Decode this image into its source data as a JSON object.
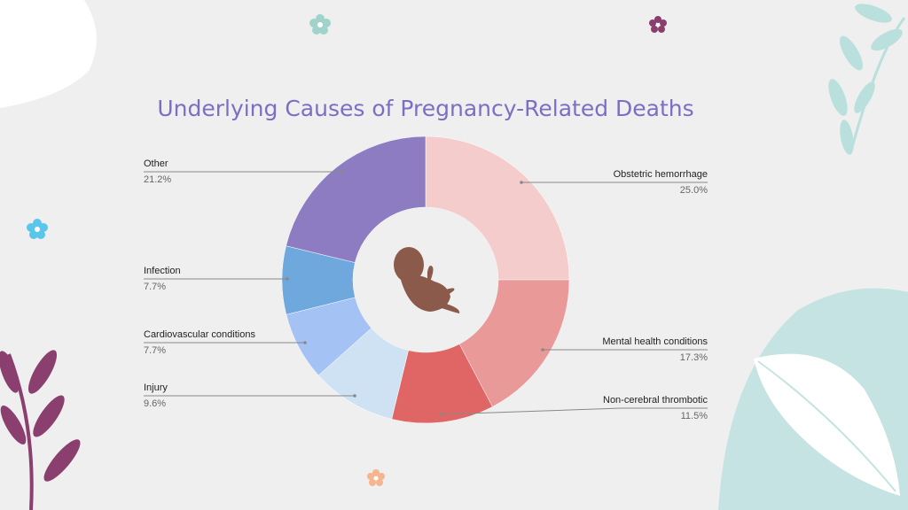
{
  "chart_data": {
    "type": "pie",
    "title": "Underlying Causes of Pregnancy-Related Deaths",
    "categories": [
      "Obstetric hemorrhage",
      "Mental health conditions",
      "Non-cerebral thrombotic",
      "Injury",
      "Cardiovascular conditions",
      "Infection",
      "Other"
    ],
    "values": [
      25.0,
      17.3,
      11.5,
      9.6,
      7.7,
      7.7,
      21.2
    ],
    "value_labels": [
      "25.0%",
      "17.3%",
      "11.5%",
      "9.6%",
      "7.7%",
      "7.7%",
      "21.2%"
    ],
    "colors": [
      "#f4cccc",
      "#ea9999",
      "#e06666",
      "#cfe2f3",
      "#a4c2f4",
      "#6fa8dc",
      "#8e7cc3"
    ],
    "donut": true
  }
}
